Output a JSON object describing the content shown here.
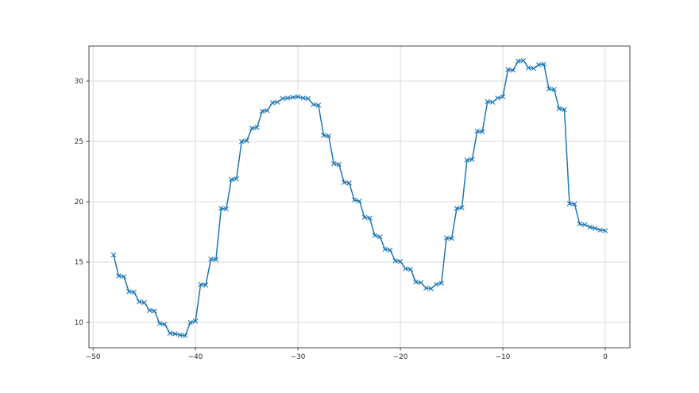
{
  "figure": {
    "background_color": "#ffffff"
  },
  "chart_data": {
    "type": "line",
    "title": "",
    "xlabel": "",
    "ylabel": "",
    "legend": null,
    "grid": true,
    "line_color": "#1f77b4",
    "marker": "x",
    "grid_color": "#d4d4d4",
    "spine_color": "#4a4a4a",
    "tick_text_color": "#262626",
    "xlim": [
      -50.4,
      2.4
    ],
    "ylim": [
      7.9,
      32.9
    ],
    "xticks": [
      {
        "value": -50,
        "label": "−50"
      },
      {
        "value": -40,
        "label": "−40"
      },
      {
        "value": -30,
        "label": "−30"
      },
      {
        "value": -20,
        "label": "−20"
      },
      {
        "value": -10,
        "label": "−10"
      },
      {
        "value": 0,
        "label": "0"
      }
    ],
    "yticks": [
      {
        "value": 10,
        "label": "10"
      },
      {
        "value": 15,
        "label": "15"
      },
      {
        "value": 20,
        "label": "20"
      },
      {
        "value": 25,
        "label": "25"
      },
      {
        "value": 30,
        "label": "30"
      }
    ],
    "x": [
      -48,
      -47.5,
      -47,
      -46.5,
      -46,
      -45.5,
      -45,
      -44.5,
      -44,
      -43.5,
      -43,
      -42.5,
      -42,
      -41.5,
      -41,
      -40.5,
      -40,
      -39.5,
      -39,
      -38.5,
      -38,
      -37.5,
      -37,
      -36.5,
      -36,
      -35.5,
      -35,
      -34.5,
      -34,
      -33.5,
      -33,
      -32.5,
      -32,
      -31.5,
      -31,
      -30.5,
      -30,
      -29.5,
      -29,
      -28.5,
      -28,
      -27.5,
      -27,
      -26.5,
      -26,
      -25.5,
      -25,
      -24.5,
      -24,
      -23.5,
      -23,
      -22.5,
      -22,
      -21.5,
      -21,
      -20.5,
      -20,
      -19.5,
      -19,
      -18.5,
      -18,
      -17.5,
      -17,
      -16.5,
      -16,
      -15.5,
      -15,
      -14.5,
      -14,
      -13.5,
      -13,
      -12.5,
      -12,
      -11.5,
      -11,
      -10.5,
      -10,
      -9.5,
      -9,
      -8.5,
      -8,
      -7.5,
      -7,
      -6.5,
      -6,
      -5.5,
      -5,
      -4.5,
      -4,
      -3.5,
      -3,
      -2.5,
      -2,
      -1.5,
      -1,
      -0.5,
      0
    ],
    "y": [
      15.6,
      13.85,
      13.8,
      12.55,
      12.5,
      11.7,
      11.65,
      11.0,
      10.95,
      9.9,
      9.85,
      9.1,
      9.05,
      8.95,
      8.9,
      10.0,
      10.1,
      13.15,
      13.1,
      15.25,
      15.2,
      19.45,
      19.4,
      21.85,
      21.9,
      25.0,
      25.05,
      26.1,
      26.15,
      27.5,
      27.55,
      28.2,
      28.25,
      28.55,
      28.6,
      28.65,
      28.7,
      28.6,
      28.55,
      28.05,
      28.0,
      25.5,
      25.45,
      23.15,
      23.1,
      21.6,
      21.55,
      20.15,
      20.05,
      18.7,
      18.65,
      17.2,
      17.1,
      16.05,
      16.0,
      15.1,
      15.05,
      14.45,
      14.4,
      13.35,
      13.3,
      12.85,
      12.8,
      13.15,
      13.25,
      17.0,
      16.95,
      19.45,
      19.5,
      23.45,
      23.5,
      25.85,
      25.8,
      28.3,
      28.25,
      28.6,
      28.7,
      30.95,
      30.9,
      31.65,
      31.7,
      31.1,
      31.05,
      31.35,
      31.4,
      29.35,
      29.3,
      27.7,
      27.65,
      19.85,
      19.8,
      18.15,
      18.1,
      17.9,
      17.8,
      17.65,
      17.6
    ]
  }
}
